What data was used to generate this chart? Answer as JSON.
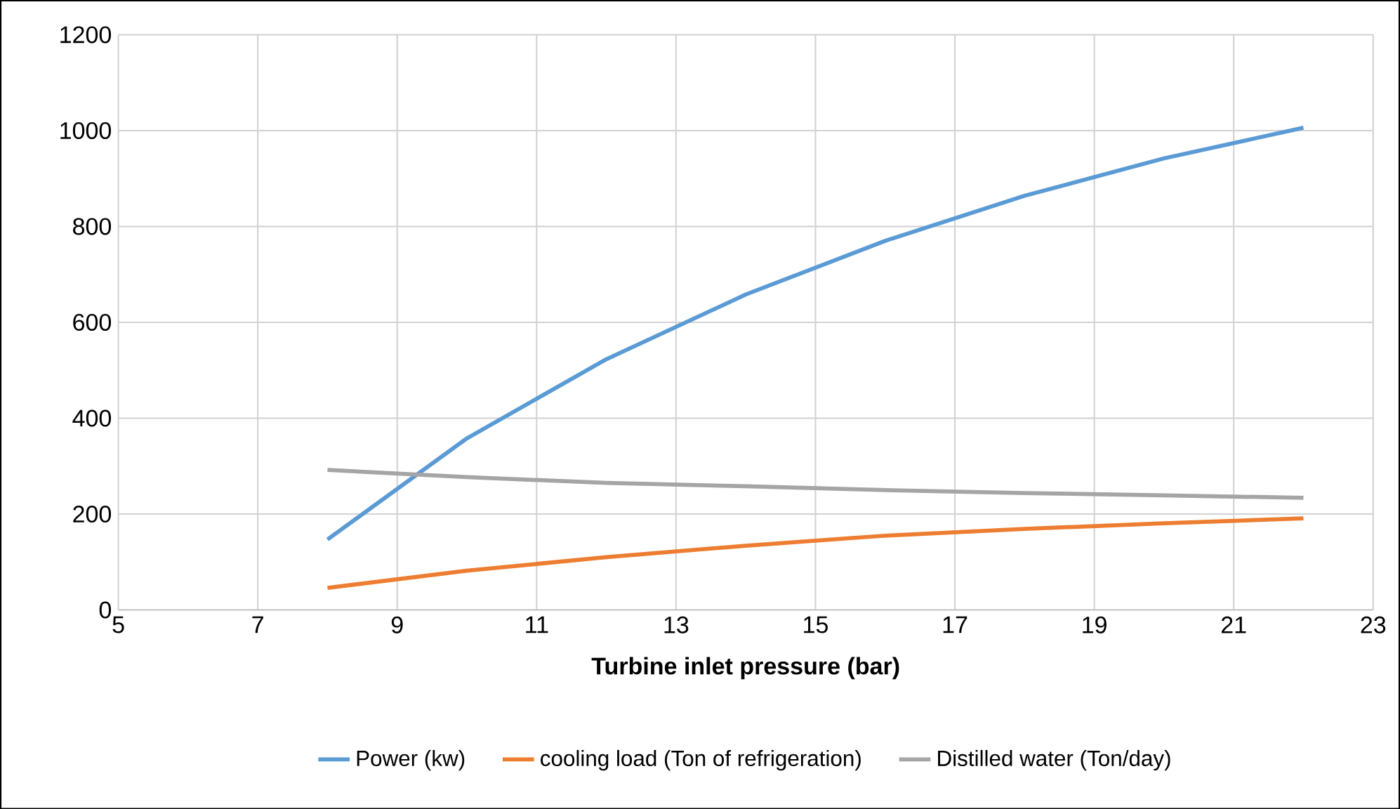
{
  "chart_data": {
    "type": "line",
    "xlabel": "Turbine inlet pressure (bar)",
    "x": [
      8,
      10,
      12,
      14,
      16,
      18,
      20,
      22
    ],
    "series": [
      {
        "name": "Power (kw)",
        "color": "#5b9bd5",
        "values": [
          147,
          358,
          523,
          658,
          770,
          864,
          942,
          1006
        ]
      },
      {
        "name": "cooling load (Ton of refrigeration)",
        "color": "#ed7d31",
        "values": [
          46,
          82,
          110,
          134,
          155,
          169,
          181,
          191
        ]
      },
      {
        "name": "Distilled water (Ton/day)",
        "color": "#a5a5a5",
        "values": [
          292,
          277,
          265,
          258,
          250,
          244,
          239,
          234
        ]
      }
    ],
    "xlim": [
      5,
      23
    ],
    "xticks": [
      5,
      7,
      9,
      11,
      13,
      15,
      17,
      19,
      21,
      23
    ],
    "ylim": [
      0,
      1200
    ],
    "yticks": [
      0,
      200,
      400,
      600,
      800,
      1000,
      1200
    ],
    "grid": true,
    "legend": "bottom",
    "marker": "none",
    "line_style": "solid"
  }
}
